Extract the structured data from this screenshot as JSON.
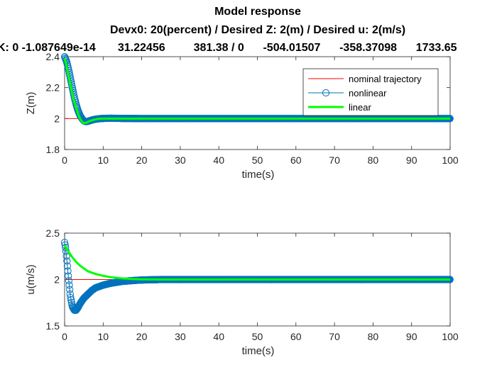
{
  "figure": {
    "title": "Model response",
    "subtitle": "Devx0: 20(percent) / Desired Z: 2(m) / Desired u: 2(m/s)",
    "gains_line": "K: 0 -1.087649e-14       31.22456         381.38 / 0      -504.01507      -358.37098      1733.65"
  },
  "colors": {
    "nominal": "#ff0000",
    "nonlinear": "#0072bd",
    "linear": "#00ff00",
    "axes": "#262626"
  },
  "chart_data": [
    {
      "type": "line",
      "xlabel": "time(s)",
      "ylabel": "Z(m)",
      "xlim": [
        0,
        100
      ],
      "ylim": [
        1.8,
        2.4
      ],
      "xticks": [
        "0",
        "10",
        "20",
        "30",
        "40",
        "50",
        "60",
        "70",
        "80",
        "90",
        "100"
      ],
      "yticks": [
        "1.8",
        "2",
        "2.2",
        "2.4"
      ],
      "legend": {
        "placement": "top-right",
        "entries": [
          "nominal trajectory",
          "nonlinear",
          "linear"
        ]
      },
      "series": [
        {
          "name": "nominal trajectory",
          "x": [
            0,
            100
          ],
          "y": [
            2,
            2
          ]
        },
        {
          "name": "nonlinear",
          "x": [
            0,
            0.5,
            1,
            1.5,
            2,
            2.5,
            3,
            3.5,
            4,
            4.5,
            5,
            5.5,
            6,
            7,
            8,
            9,
            10,
            12,
            15,
            20,
            30,
            50,
            100
          ],
          "y": [
            2.4,
            2.37,
            2.32,
            2.26,
            2.2,
            2.14,
            2.09,
            2.05,
            2.02,
            2.0,
            1.985,
            1.98,
            1.982,
            1.99,
            1.996,
            1.999,
            2.001,
            2.002,
            2.001,
            2.0,
            2.0,
            2.0,
            2.0
          ]
        },
        {
          "name": "linear",
          "x": [
            0,
            0.5,
            1,
            1.5,
            2,
            2.5,
            3,
            3.5,
            4,
            4.5,
            5,
            5.5,
            6,
            7,
            8,
            9,
            10,
            12,
            15,
            20,
            30,
            50,
            100
          ],
          "y": [
            2.39,
            2.34,
            2.28,
            2.22,
            2.16,
            2.11,
            2.07,
            2.03,
            2.0,
            1.98,
            1.97,
            1.972,
            1.978,
            1.988,
            1.995,
            1.999,
            2.0,
            2.0,
            2.0,
            2.0,
            2.0,
            2.0,
            2.0
          ]
        }
      ]
    },
    {
      "type": "line",
      "xlabel": "time(s)",
      "ylabel": "u(m/s)",
      "xlim": [
        0,
        100
      ],
      "ylim": [
        1.5,
        2.5
      ],
      "xticks": [
        "0",
        "10",
        "20",
        "30",
        "40",
        "50",
        "60",
        "70",
        "80",
        "90",
        "100"
      ],
      "yticks": [
        "1.5",
        "2",
        "2.5"
      ],
      "series": [
        {
          "name": "nominal trajectory",
          "x": [
            0,
            100
          ],
          "y": [
            2,
            2
          ]
        },
        {
          "name": "nonlinear",
          "x": [
            0,
            0.3,
            0.6,
            1,
            1.5,
            2,
            2.5,
            3,
            3.5,
            4,
            5,
            6,
            7,
            8,
            10,
            12,
            15,
            18,
            20,
            25,
            30,
            50,
            100
          ],
          "y": [
            2.4,
            2.33,
            2.2,
            2.02,
            1.82,
            1.71,
            1.67,
            1.67,
            1.7,
            1.74,
            1.8,
            1.84,
            1.88,
            1.91,
            1.94,
            1.96,
            1.98,
            1.99,
            1.995,
            2.0,
            2.0,
            2.0,
            2.0
          ]
        },
        {
          "name": "linear",
          "x": [
            0,
            1,
            2,
            3,
            4,
            5,
            6,
            8,
            10,
            12,
            15,
            18,
            20,
            25,
            30,
            50,
            100
          ],
          "y": [
            2.37,
            2.3,
            2.24,
            2.19,
            2.15,
            2.12,
            2.09,
            2.06,
            2.04,
            2.025,
            2.012,
            2.005,
            2.002,
            2.0,
            2.0,
            2.0,
            2.0
          ]
        }
      ]
    }
  ]
}
